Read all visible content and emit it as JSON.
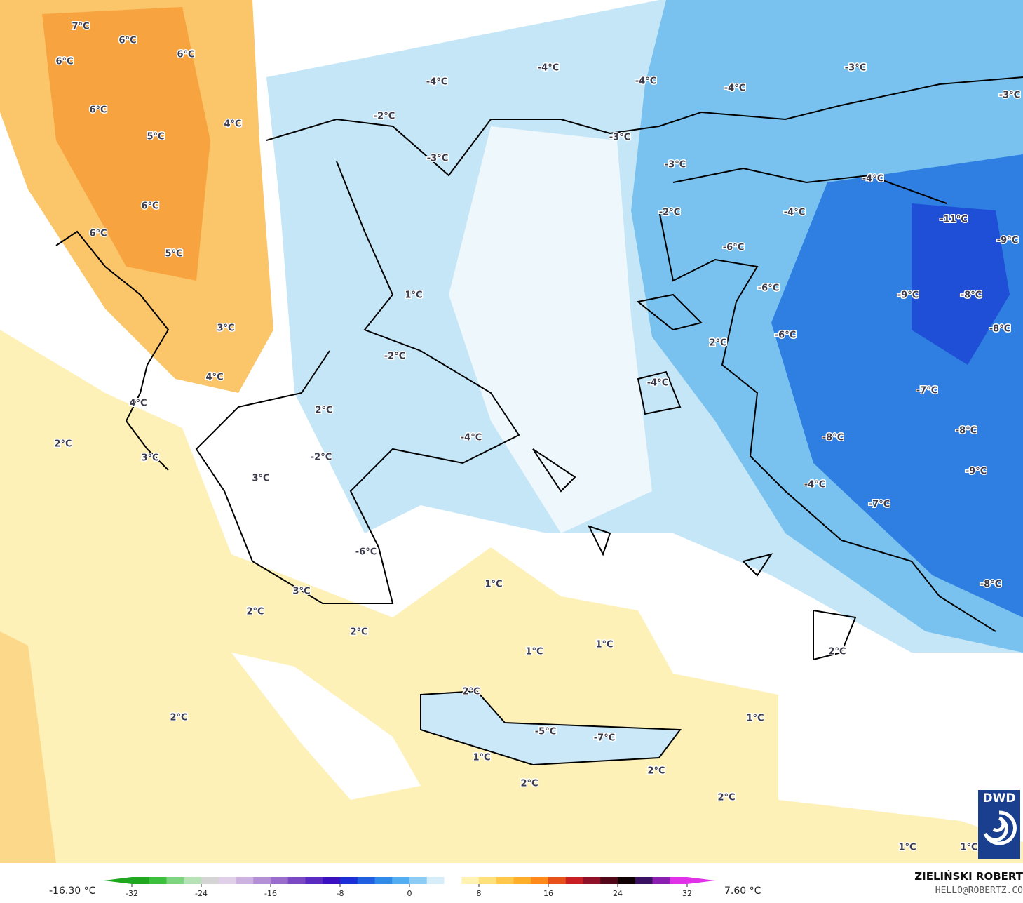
{
  "map": {
    "labels": [
      "7°C",
      "6°C",
      "6°C",
      "6°C",
      "6°C",
      "5°C",
      "4°C",
      "6°C",
      "6°C",
      "5°C",
      "3°C",
      "4°C",
      "4°C",
      "2°C",
      "3°C",
      "2°C",
      "-2°C",
      "3°C",
      "-6°C",
      "3°C",
      "2°C",
      "2°C",
      "1°C",
      "-2°C",
      "-4°C",
      "1°C",
      "1°C",
      "1°C",
      "2°C",
      "2°C",
      "-5°C",
      "-7°C",
      "1°C",
      "2°C",
      "2°C",
      "1°C",
      "2°C",
      "1°C",
      "1°C",
      "-2°C",
      "-4°C",
      "-3°C",
      "-4°C",
      "-4°C",
      "-4°C",
      "-3°C",
      "-3°C",
      "-2°C",
      "-3°C",
      "-3°C",
      "-4°C",
      "-4°C",
      "-11°C",
      "-9°C",
      "-6°C",
      "-6°C",
      "-9°C",
      "-8°C",
      "-8°C",
      "-6°C",
      "2°C",
      "-4°C",
      "-7°C",
      "-8°C",
      "-8°C",
      "-9°C",
      "-4°C",
      "-7°C",
      "-8°C",
      "2°C"
    ]
  },
  "colorbar": {
    "min_label": "-16.30 °C",
    "max_label": "7.60 °C",
    "ticks": [
      -32,
      -24,
      -16,
      -8,
      0,
      8,
      16,
      24,
      32
    ],
    "range": [
      -32,
      32
    ],
    "colors": [
      "#1fa81f",
      "#3cbf3c",
      "#7fd47f",
      "#b5e3b5",
      "#d4d4d4",
      "#e0cfe8",
      "#cdb1e0",
      "#b48fd6",
      "#9a6ccb",
      "#7c48c4",
      "#5b2ac0",
      "#3a10c0",
      "#1c2fd6",
      "#1f5fe0",
      "#2f8ae8",
      "#52aef0",
      "#8dcdf5",
      "#d6eefa",
      "#ffffff",
      "#fff2b3",
      "#ffe07a",
      "#ffc84a",
      "#ffae2a",
      "#ff8a1a",
      "#e8501a",
      "#c81e24",
      "#901028",
      "#500818",
      "#100004",
      "#3a1060",
      "#8a20b0",
      "#e030e8"
    ]
  },
  "author": {
    "name": "ZIELIŃSKI ROBERT",
    "email": "HELLO@ROBERTZ.CO"
  },
  "logo": "DWD"
}
